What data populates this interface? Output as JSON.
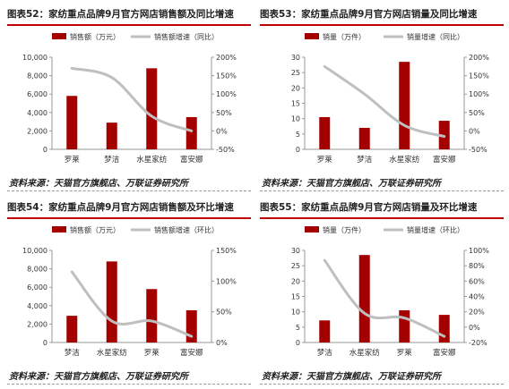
{
  "chart_data": [
    {
      "type": "bar",
      "title": "图表52：家纺重点品牌9月官方网店销售额及同比增速",
      "source": "资料来源：天猫官方旗舰店、万联证券研究所",
      "categories": [
        "罗莱",
        "梦洁",
        "水星家纺",
        "富安娜"
      ],
      "series": [
        {
          "name": "销售额（万元）",
          "type": "bar",
          "axis": "left",
          "color": "#a50000",
          "values": [
            5800,
            2900,
            8800,
            3500
          ]
        },
        {
          "name": "销售额增速（同比）",
          "type": "line",
          "axis": "right",
          "color": "#bfbfbf",
          "values": [
            170,
            145,
            40,
            0
          ]
        }
      ],
      "ylim_left": [
        0,
        10000
      ],
      "yticks_left": [
        0,
        2000,
        4000,
        6000,
        8000,
        10000
      ],
      "yticklabels_left": [
        "0",
        "2,000",
        "4,000",
        "6,000",
        "8,000",
        "10,000"
      ],
      "ylim_right": [
        -50,
        200
      ],
      "yticks_right": [
        -50,
        0,
        50,
        100,
        150,
        200
      ],
      "yticklabels_right": [
        "-50%",
        "0%",
        "50%",
        "100%",
        "150%",
        "200%"
      ],
      "legend": "top"
    },
    {
      "type": "bar",
      "title": "图表53：家纺重点品牌9月官方网店销量及同比增速",
      "source": "资料来源：天猫官方旗舰店、万联证券研究所",
      "categories": [
        "罗莱",
        "梦洁",
        "水星家纺",
        "富安娜"
      ],
      "series": [
        {
          "name": "销量（万件）",
          "type": "bar",
          "axis": "left",
          "color": "#a50000",
          "values": [
            10.5,
            7,
            28.5,
            9.3
          ]
        },
        {
          "name": "销量增速（同比）",
          "type": "line",
          "axis": "right",
          "color": "#bfbfbf",
          "values": [
            175,
            100,
            15,
            -15
          ]
        }
      ],
      "ylim_left": [
        0,
        30
      ],
      "yticks_left": [
        0,
        5,
        10,
        15,
        20,
        25,
        30
      ],
      "yticklabels_left": [
        "0",
        "5",
        "10",
        "15",
        "20",
        "25",
        "30"
      ],
      "ylim_right": [
        -50,
        200
      ],
      "yticks_right": [
        -50,
        0,
        50,
        100,
        150,
        200
      ],
      "yticklabels_right": [
        "-50%",
        "0%",
        "50%",
        "100%",
        "150%",
        "200%"
      ],
      "legend": "top"
    },
    {
      "type": "bar",
      "title": "图表54：家纺重点品牌9月官方网店销售额及环比增速",
      "source": "资料来源：天猫官方旗舰店、万联证券研究所",
      "categories": [
        "梦洁",
        "水星家纺",
        "罗莱",
        "富安娜"
      ],
      "series": [
        {
          "name": "销售额（万元）",
          "type": "bar",
          "axis": "left",
          "color": "#a50000",
          "values": [
            2900,
            8800,
            5800,
            3500
          ]
        },
        {
          "name": "销售额增速（环比）",
          "type": "line",
          "axis": "right",
          "color": "#bfbfbf",
          "values": [
            115,
            35,
            35,
            10
          ]
        }
      ],
      "ylim_left": [
        0,
        10000
      ],
      "yticks_left": [
        0,
        2000,
        4000,
        6000,
        8000,
        10000
      ],
      "yticklabels_left": [
        "0",
        "2,000",
        "4,000",
        "6,000",
        "8,000",
        "10,000"
      ],
      "ylim_right": [
        0,
        150
      ],
      "yticks_right": [
        0,
        50,
        100,
        150
      ],
      "yticklabels_right": [
        "0%",
        "50%",
        "100%",
        "150%"
      ],
      "legend": "top"
    },
    {
      "type": "bar",
      "title": "图表55：家纺重点品牌9月官方网店销量及环比增速",
      "source": "资料来源：天猫官方旗舰店、万联证券研究所",
      "categories": [
        "梦洁",
        "水星家纺",
        "罗莱",
        "富安娜"
      ],
      "series": [
        {
          "name": "销量（万件）",
          "type": "bar",
          "axis": "left",
          "color": "#a50000",
          "values": [
            7.2,
            28.5,
            10.5,
            9.0
          ]
        },
        {
          "name": "销量增速（环比）",
          "type": "line",
          "axis": "right",
          "color": "#bfbfbf",
          "values": [
            87,
            18,
            12,
            -12
          ]
        }
      ],
      "ylim_left": [
        0,
        30
      ],
      "yticks_left": [
        0,
        5,
        10,
        15,
        20,
        25,
        30
      ],
      "yticklabels_left": [
        "0",
        "5",
        "10",
        "15",
        "20",
        "25",
        "30"
      ],
      "ylim_right": [
        -20,
        100
      ],
      "yticks_right": [
        -20,
        0,
        20,
        40,
        60,
        80,
        100
      ],
      "yticklabels_right": [
        "-20%",
        "0%",
        "20%",
        "40%",
        "60%",
        "80%",
        "100%"
      ],
      "legend": "top"
    }
  ]
}
